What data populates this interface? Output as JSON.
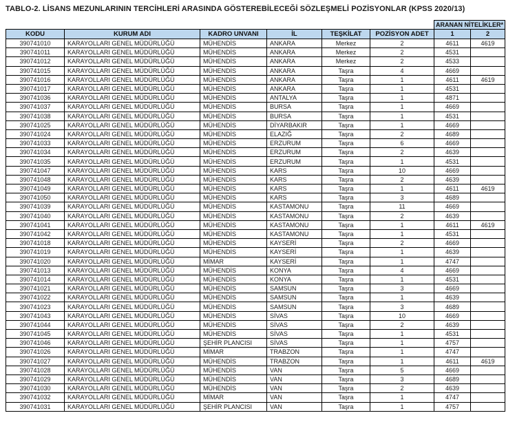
{
  "page": {
    "title": "TABLO-2. LİSANS MEZUNLARININ TERCİHLERİ ARASINDA GÖSTEREBİLECEĞİ SÖZLEŞMELİ POZİSYONLAR (KPSS 2020/13)"
  },
  "colors": {
    "header_bg": "#bdd7ee",
    "border": "#000000"
  },
  "table": {
    "group_header": "ARANAN NİTELİKLER*",
    "columns": [
      "KODU",
      "KURUM ADI",
      "KADRO UNVANI",
      "İL",
      "TEŞKİLAT",
      "POZİSYON ADET",
      "1",
      "2"
    ],
    "rows": [
      [
        "390741010",
        "KARAYOLLARI GENEL MÜDÜRLÜĞÜ",
        "MÜHENDİS",
        "ANKARA",
        "Merkez",
        "2",
        "4611",
        "4619"
      ],
      [
        "390741011",
        "KARAYOLLARI GENEL MÜDÜRLÜĞÜ",
        "MÜHENDİS",
        "ANKARA",
        "Merkez",
        "2",
        "4531",
        ""
      ],
      [
        "390741012",
        "KARAYOLLARI GENEL MÜDÜRLÜĞÜ",
        "MÜHENDİS",
        "ANKARA",
        "Merkez",
        "2",
        "4533",
        ""
      ],
      [
        "390741015",
        "KARAYOLLARI GENEL MÜDÜRLÜĞÜ",
        "MÜHENDİS",
        "ANKARA",
        "Taşra",
        "4",
        "4669",
        ""
      ],
      [
        "390741016",
        "KARAYOLLARI GENEL MÜDÜRLÜĞÜ",
        "MÜHENDİS",
        "ANKARA",
        "Taşra",
        "1",
        "4611",
        "4619"
      ],
      [
        "390741017",
        "KARAYOLLARI GENEL MÜDÜRLÜĞÜ",
        "MÜHENDİS",
        "ANKARA",
        "Taşra",
        "1",
        "4531",
        ""
      ],
      [
        "390741036",
        "KARAYOLLARI GENEL MÜDÜRLÜĞÜ",
        "MÜHENDİS",
        "ANTALYA",
        "Taşra",
        "1",
        "4871",
        ""
      ],
      [
        "390741037",
        "KARAYOLLARI GENEL MÜDÜRLÜĞÜ",
        "MÜHENDİS",
        "BURSA",
        "Taşra",
        "1",
        "4669",
        ""
      ],
      [
        "390741038",
        "KARAYOLLARI GENEL MÜDÜRLÜĞÜ",
        "MÜHENDİS",
        "BURSA",
        "Taşra",
        "1",
        "4531",
        ""
      ],
      [
        "390741025",
        "KARAYOLLARI GENEL MÜDÜRLÜĞÜ",
        "MÜHENDİS",
        "DİYARBAKIR",
        "Taşra",
        "1",
        "4669",
        ""
      ],
      [
        "390741024",
        "KARAYOLLARI GENEL MÜDÜRLÜĞÜ",
        "MÜHENDİS",
        "ELAZIĞ",
        "Taşra",
        "2",
        "4689",
        ""
      ],
      [
        "390741033",
        "KARAYOLLARI GENEL MÜDÜRLÜĞÜ",
        "MÜHENDİS",
        "ERZURUM",
        "Taşra",
        "6",
        "4669",
        ""
      ],
      [
        "390741034",
        "KARAYOLLARI GENEL MÜDÜRLÜĞÜ",
        "MÜHENDİS",
        "ERZURUM",
        "Taşra",
        "2",
        "4639",
        ""
      ],
      [
        "390741035",
        "KARAYOLLARI GENEL MÜDÜRLÜĞÜ",
        "MÜHENDİS",
        "ERZURUM",
        "Taşra",
        "1",
        "4531",
        ""
      ],
      [
        "390741047",
        "KARAYOLLARI GENEL MÜDÜRLÜĞÜ",
        "MÜHENDİS",
        "KARS",
        "Taşra",
        "10",
        "4669",
        ""
      ],
      [
        "390741048",
        "KARAYOLLARI GENEL MÜDÜRLÜĞÜ",
        "MÜHENDİS",
        "KARS",
        "Taşra",
        "2",
        "4639",
        ""
      ],
      [
        "390741049",
        "KARAYOLLARI GENEL MÜDÜRLÜĞÜ",
        "MÜHENDİS",
        "KARS",
        "Taşra",
        "1",
        "4611",
        "4619"
      ],
      [
        "390741050",
        "KARAYOLLARI GENEL MÜDÜRLÜĞÜ",
        "MÜHENDİS",
        "KARS",
        "Taşra",
        "3",
        "4689",
        ""
      ],
      [
        "390741039",
        "KARAYOLLARI GENEL MÜDÜRLÜĞÜ",
        "MÜHENDİS",
        "KASTAMONU",
        "Taşra",
        "11",
        "4669",
        ""
      ],
      [
        "390741040",
        "KARAYOLLARI GENEL MÜDÜRLÜĞÜ",
        "MÜHENDİS",
        "KASTAMONU",
        "Taşra",
        "2",
        "4639",
        ""
      ],
      [
        "390741041",
        "KARAYOLLARI GENEL MÜDÜRLÜĞÜ",
        "MÜHENDİS",
        "KASTAMONU",
        "Taşra",
        "1",
        "4611",
        "4619"
      ],
      [
        "390741042",
        "KARAYOLLARI GENEL MÜDÜRLÜĞÜ",
        "MÜHENDİS",
        "KASTAMONU",
        "Taşra",
        "1",
        "4531",
        ""
      ],
      [
        "390741018",
        "KARAYOLLARI GENEL MÜDÜRLÜĞÜ",
        "MÜHENDİS",
        "KAYSERİ",
        "Taşra",
        "2",
        "4669",
        ""
      ],
      [
        "390741019",
        "KARAYOLLARI GENEL MÜDÜRLÜĞÜ",
        "MÜHENDİS",
        "KAYSERİ",
        "Taşra",
        "1",
        "4639",
        ""
      ],
      [
        "390741020",
        "KARAYOLLARI GENEL MÜDÜRLÜĞÜ",
        "MİMAR",
        "KAYSERİ",
        "Taşra",
        "1",
        "4747",
        ""
      ],
      [
        "390741013",
        "KARAYOLLARI GENEL MÜDÜRLÜĞÜ",
        "MÜHENDİS",
        "KONYA",
        "Taşra",
        "4",
        "4669",
        ""
      ],
      [
        "390741014",
        "KARAYOLLARI GENEL MÜDÜRLÜĞÜ",
        "MÜHENDİS",
        "KONYA",
        "Taşra",
        "1",
        "4531",
        ""
      ],
      [
        "390741021",
        "KARAYOLLARI GENEL MÜDÜRLÜĞÜ",
        "MÜHENDİS",
        "SAMSUN",
        "Taşra",
        "3",
        "4669",
        ""
      ],
      [
        "390741022",
        "KARAYOLLARI GENEL MÜDÜRLÜĞÜ",
        "MÜHENDİS",
        "SAMSUN",
        "Taşra",
        "1",
        "4639",
        ""
      ],
      [
        "390741023",
        "KARAYOLLARI GENEL MÜDÜRLÜĞÜ",
        "MÜHENDİS",
        "SAMSUN",
        "Taşra",
        "3",
        "4689",
        ""
      ],
      [
        "390741043",
        "KARAYOLLARI GENEL MÜDÜRLÜĞÜ",
        "MÜHENDİS",
        "SİVAS",
        "Taşra",
        "10",
        "4669",
        ""
      ],
      [
        "390741044",
        "KARAYOLLARI GENEL MÜDÜRLÜĞÜ",
        "MÜHENDİS",
        "SİVAS",
        "Taşra",
        "2",
        "4639",
        ""
      ],
      [
        "390741045",
        "KARAYOLLARI GENEL MÜDÜRLÜĞÜ",
        "MÜHENDİS",
        "SİVAS",
        "Taşra",
        "1",
        "4531",
        ""
      ],
      [
        "390741046",
        "KARAYOLLARI GENEL MÜDÜRLÜĞÜ",
        "ŞEHİR PLANCISI",
        "SİVAS",
        "Taşra",
        "1",
        "4757",
        ""
      ],
      [
        "390741026",
        "KARAYOLLARI GENEL MÜDÜRLÜĞÜ",
        "MİMAR",
        "TRABZON",
        "Taşra",
        "1",
        "4747",
        ""
      ],
      [
        "390741027",
        "KARAYOLLARI GENEL MÜDÜRLÜĞÜ",
        "MÜHENDİS",
        "TRABZON",
        "Taşra",
        "1",
        "4611",
        "4619"
      ],
      [
        "390741028",
        "KARAYOLLARI GENEL MÜDÜRLÜĞÜ",
        "MÜHENDİS",
        "VAN",
        "Taşra",
        "5",
        "4669",
        ""
      ],
      [
        "390741029",
        "KARAYOLLARI GENEL MÜDÜRLÜĞÜ",
        "MÜHENDİS",
        "VAN",
        "Taşra",
        "3",
        "4689",
        ""
      ],
      [
        "390741030",
        "KARAYOLLARI GENEL MÜDÜRLÜĞÜ",
        "MÜHENDİS",
        "VAN",
        "Taşra",
        "2",
        "4639",
        ""
      ],
      [
        "390741032",
        "KARAYOLLARI GENEL MÜDÜRLÜĞÜ",
        "MİMAR",
        "VAN",
        "Taşra",
        "1",
        "4747",
        ""
      ],
      [
        "390741031",
        "KARAYOLLARI GENEL MÜDÜRLÜĞÜ",
        "ŞEHİR PLANCISI",
        "VAN",
        "Taşra",
        "1",
        "4757",
        ""
      ]
    ]
  }
}
